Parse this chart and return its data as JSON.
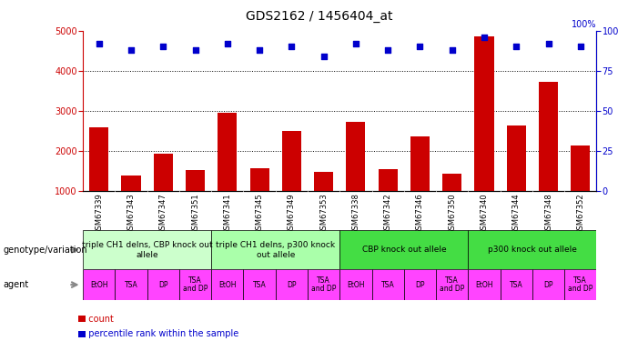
{
  "title": "GDS2162 / 1456404_at",
  "samples": [
    "GSM67339",
    "GSM67343",
    "GSM67347",
    "GSM67351",
    "GSM67341",
    "GSM67345",
    "GSM67349",
    "GSM67353",
    "GSM67338",
    "GSM67342",
    "GSM67346",
    "GSM67350",
    "GSM67340",
    "GSM67344",
    "GSM67348",
    "GSM67352"
  ],
  "counts": [
    2600,
    1380,
    1920,
    1520,
    2950,
    1560,
    2500,
    1470,
    2720,
    1540,
    2360,
    1440,
    4850,
    2630,
    3720,
    2130
  ],
  "percentiles": [
    92,
    88,
    90,
    88,
    92,
    88,
    90,
    84,
    92,
    88,
    90,
    88,
    96,
    90,
    92,
    90
  ],
  "genotype_groups": [
    {
      "label": "triple CH1 delns, CBP knock out\nallele",
      "start": 0,
      "end": 4,
      "color": "#ccffcc"
    },
    {
      "label": "triple CH1 delns, p300 knock\nout allele",
      "start": 4,
      "end": 8,
      "color": "#aaffaa"
    },
    {
      "label": "CBP knock out allele",
      "start": 8,
      "end": 12,
      "color": "#44dd44"
    },
    {
      "label": "p300 knock out allele",
      "start": 12,
      "end": 16,
      "color": "#44dd44"
    }
  ],
  "agent_labels": [
    "EtOH",
    "TSA",
    "DP",
    "TSA\nand DP",
    "EtOH",
    "TSA",
    "DP",
    "TSA\nand DP",
    "EtOH",
    "TSA",
    "DP",
    "TSA\nand DP",
    "EtOH",
    "TSA",
    "DP",
    "TSA\nand DP"
  ],
  "bar_color": "#cc0000",
  "scatter_color": "#0000cc",
  "ylim_left": [
    1000,
    5000
  ],
  "ylim_right": [
    0,
    100
  ],
  "yticks_left": [
    1000,
    2000,
    3000,
    4000,
    5000
  ],
  "yticks_right": [
    0,
    25,
    50,
    75,
    100
  ],
  "background_color": "#ffffff",
  "plot_bg_color": "#ffffff",
  "sample_label_bg": "#cccccc",
  "agent_color": "#ff44ff",
  "genotype_light_color": "#ccffcc",
  "genotype_med_color": "#aaffaa",
  "genotype_dark_color": "#44dd44"
}
